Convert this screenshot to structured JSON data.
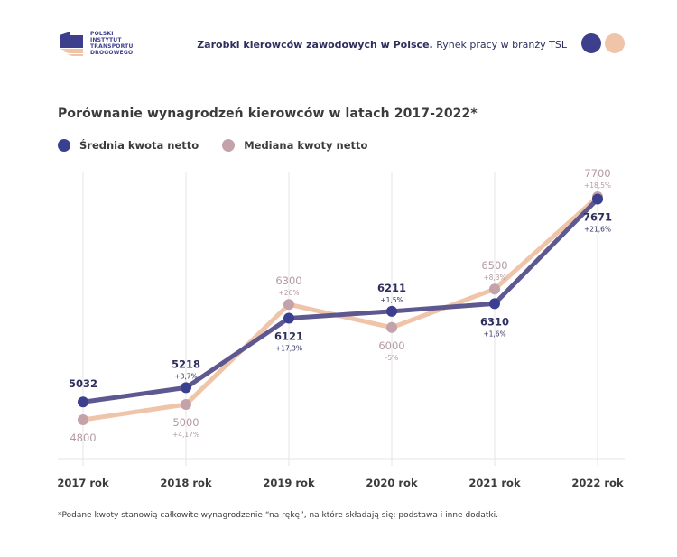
{
  "header": {
    "logo_lines": [
      "POLSKI",
      "INSTYTUT",
      "TRANSPORTU",
      "DROGOWEGO"
    ],
    "title_bold": "Zarobki kierowców zawodowych w Polsce.",
    "title_regular": " Rynek pracy w branży TSL",
    "dot_colors": [
      "#3d3f8c",
      "#efc4a8"
    ]
  },
  "colors": {
    "mean_line": "#5e5891",
    "mean_marker": "#3b3f8f",
    "mean_label": "#2e2f5e",
    "median_line": "#efc4a8",
    "median_marker": "#c3a2aa",
    "median_label": "#b59aa2",
    "grid": "#e6e6e6"
  },
  "chart_data": {
    "type": "line",
    "title": "Porównanie wynagrodzeń kierowców w latach 2017-2022*",
    "categories": [
      "2017 rok",
      "2018 rok",
      "2019 rok",
      "2020 rok",
      "2021 rok",
      "2022 rok"
    ],
    "series": [
      {
        "name": "Średnia kwota netto",
        "values": [
          5032,
          5218,
          6121,
          6211,
          6310,
          7671
        ],
        "labels": [
          "5032",
          "5218",
          "6121",
          "6211",
          "6310",
          "7671"
        ],
        "changes": [
          "",
          "+3,7%",
          "+17,3%",
          "+1,5%",
          "+1,6%",
          "+21,6%"
        ]
      },
      {
        "name": "Mediana kwoty netto",
        "values": [
          4800,
          5000,
          6300,
          6000,
          6500,
          7700
        ],
        "labels": [
          "4800",
          "5000",
          "6300",
          "6000",
          "6500",
          "7700"
        ],
        "changes": [
          "",
          "+4,17%",
          "+26%",
          "-5%",
          "+8,3%",
          "+18,5%"
        ]
      }
    ],
    "xlabel": "",
    "ylabel": "",
    "ylim": [
      4000,
      8000
    ],
    "grid": "vertical",
    "legend": "top-left"
  },
  "footnote": "*Podane kwoty stanowią całkowite wynagrodzenie “na rękę”, na które składają się: podstawa i inne dodatki."
}
